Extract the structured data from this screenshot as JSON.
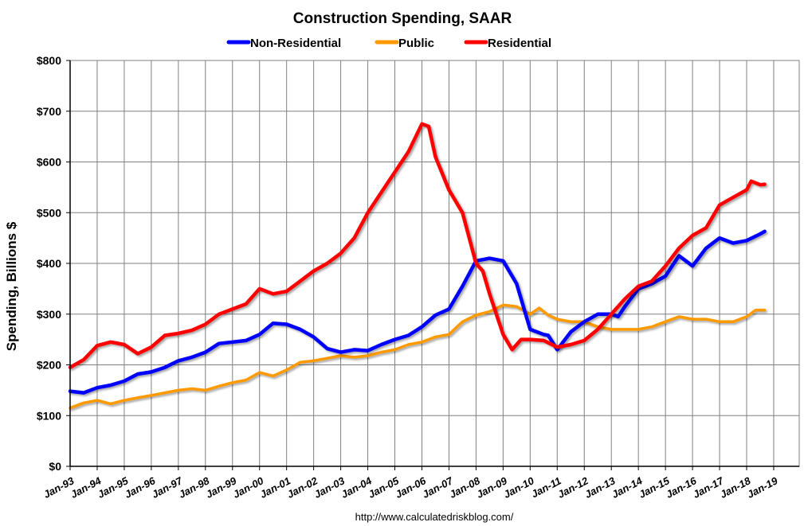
{
  "chart_data": {
    "type": "line",
    "title": "Construction Spending, SAAR",
    "ylabel": "Spending, Billions $",
    "xlabel": "",
    "source": "http://www.calculatedriskblog.com/",
    "ylim": [
      0,
      800
    ],
    "xlim": [
      "1993-01",
      "2019-12"
    ],
    "grid": true,
    "legend_placement": "top",
    "y_ticks": [
      "$0",
      "$100",
      "$200",
      "$300",
      "$400",
      "$500",
      "$600",
      "$700",
      "$800"
    ],
    "x_ticks": [
      "Jan-93",
      "Jan-94",
      "Jan-95",
      "Jan-96",
      "Jan-97",
      "Jan-98",
      "Jan-99",
      "Jan-00",
      "Jan-01",
      "Jan-02",
      "Jan-03",
      "Jan-04",
      "Jan-05",
      "Jan-06",
      "Jan-07",
      "Jan-08",
      "Jan-09",
      "Jan-10",
      "Jan-11",
      "Jan-12",
      "Jan-13",
      "Jan-14",
      "Jan-15",
      "Jan-16",
      "Jan-17",
      "Jan-18",
      "Jan-19"
    ],
    "series": [
      {
        "name": "Non-Residential",
        "color": "#0000FF",
        "points": [
          [
            "1993-01",
            148
          ],
          [
            "1993-07",
            145
          ],
          [
            "1994-01",
            155
          ],
          [
            "1994-07",
            160
          ],
          [
            "1995-01",
            168
          ],
          [
            "1995-07",
            182
          ],
          [
            "1996-01",
            186
          ],
          [
            "1996-07",
            195
          ],
          [
            "1997-01",
            208
          ],
          [
            "1997-07",
            215
          ],
          [
            "1998-01",
            225
          ],
          [
            "1998-07",
            242
          ],
          [
            "1999-01",
            245
          ],
          [
            "1999-07",
            248
          ],
          [
            "2000-01",
            260
          ],
          [
            "2000-07",
            282
          ],
          [
            "2001-01",
            280
          ],
          [
            "2001-07",
            270
          ],
          [
            "2002-01",
            255
          ],
          [
            "2002-07",
            232
          ],
          [
            "2003-01",
            225
          ],
          [
            "2003-07",
            230
          ],
          [
            "2004-01",
            228
          ],
          [
            "2004-07",
            240
          ],
          [
            "2005-01",
            250
          ],
          [
            "2005-07",
            258
          ],
          [
            "2006-01",
            275
          ],
          [
            "2006-07",
            298
          ],
          [
            "2007-01",
            310
          ],
          [
            "2007-07",
            355
          ],
          [
            "2008-01",
            405
          ],
          [
            "2008-07",
            410
          ],
          [
            "2009-01",
            405
          ],
          [
            "2009-07",
            360
          ],
          [
            "2010-01",
            270
          ],
          [
            "2010-07",
            260
          ],
          [
            "2010-09",
            258
          ],
          [
            "2011-01",
            230
          ],
          [
            "2011-07",
            265
          ],
          [
            "2012-01",
            285
          ],
          [
            "2012-07",
            300
          ],
          [
            "2013-01",
            300
          ],
          [
            "2013-04",
            295
          ],
          [
            "2013-07",
            315
          ],
          [
            "2014-01",
            350
          ],
          [
            "2014-07",
            360
          ],
          [
            "2015-01",
            375
          ],
          [
            "2015-07",
            415
          ],
          [
            "2016-01",
            395
          ],
          [
            "2016-07",
            430
          ],
          [
            "2017-01",
            450
          ],
          [
            "2017-07",
            440
          ],
          [
            "2018-01",
            445
          ],
          [
            "2018-07",
            458
          ],
          [
            "2018-09",
            463
          ]
        ]
      },
      {
        "name": "Public",
        "color": "#FF9900",
        "points": [
          [
            "1993-01",
            115
          ],
          [
            "1993-07",
            125
          ],
          [
            "1994-01",
            130
          ],
          [
            "1994-07",
            123
          ],
          [
            "1995-01",
            130
          ],
          [
            "1995-07",
            135
          ],
          [
            "1996-01",
            140
          ],
          [
            "1996-07",
            145
          ],
          [
            "1997-01",
            150
          ],
          [
            "1997-07",
            153
          ],
          [
            "1998-01",
            150
          ],
          [
            "1998-07",
            158
          ],
          [
            "1999-01",
            165
          ],
          [
            "1999-07",
            170
          ],
          [
            "2000-01",
            185
          ],
          [
            "2000-07",
            178
          ],
          [
            "2001-01",
            190
          ],
          [
            "2001-07",
            205
          ],
          [
            "2002-01",
            208
          ],
          [
            "2002-07",
            213
          ],
          [
            "2003-01",
            218
          ],
          [
            "2003-07",
            215
          ],
          [
            "2004-01",
            218
          ],
          [
            "2004-07",
            225
          ],
          [
            "2005-01",
            230
          ],
          [
            "2005-07",
            240
          ],
          [
            "2006-01",
            245
          ],
          [
            "2006-07",
            255
          ],
          [
            "2007-01",
            260
          ],
          [
            "2007-07",
            285
          ],
          [
            "2008-01",
            298
          ],
          [
            "2008-07",
            305
          ],
          [
            "2009-01",
            318
          ],
          [
            "2009-07",
            315
          ],
          [
            "2010-01",
            300
          ],
          [
            "2010-05",
            312
          ],
          [
            "2010-09",
            298
          ],
          [
            "2011-01",
            290
          ],
          [
            "2011-07",
            285
          ],
          [
            "2012-01",
            285
          ],
          [
            "2012-07",
            275
          ],
          [
            "2013-01",
            270
          ],
          [
            "2013-07",
            270
          ],
          [
            "2014-01",
            270
          ],
          [
            "2014-07",
            275
          ],
          [
            "2015-01",
            285
          ],
          [
            "2015-07",
            295
          ],
          [
            "2016-01",
            290
          ],
          [
            "2016-07",
            290
          ],
          [
            "2017-01",
            285
          ],
          [
            "2017-07",
            285
          ],
          [
            "2018-01",
            295
          ],
          [
            "2018-05",
            308
          ],
          [
            "2018-09",
            308
          ]
        ]
      },
      {
        "name": "Residential",
        "color": "#FF0000",
        "points": [
          [
            "1993-01",
            195
          ],
          [
            "1993-07",
            210
          ],
          [
            "1994-01",
            238
          ],
          [
            "1994-07",
            245
          ],
          [
            "1995-01",
            240
          ],
          [
            "1995-07",
            222
          ],
          [
            "1996-01",
            235
          ],
          [
            "1996-07",
            258
          ],
          [
            "1997-01",
            262
          ],
          [
            "1997-07",
            268
          ],
          [
            "1998-01",
            280
          ],
          [
            "1998-07",
            300
          ],
          [
            "1999-01",
            310
          ],
          [
            "1999-07",
            320
          ],
          [
            "2000-01",
            350
          ],
          [
            "2000-07",
            340
          ],
          [
            "2001-01",
            345
          ],
          [
            "2001-07",
            365
          ],
          [
            "2002-01",
            385
          ],
          [
            "2002-07",
            400
          ],
          [
            "2003-01",
            420
          ],
          [
            "2003-07",
            450
          ],
          [
            "2004-01",
            500
          ],
          [
            "2004-07",
            540
          ],
          [
            "2005-01",
            580
          ],
          [
            "2005-07",
            620
          ],
          [
            "2006-01",
            675
          ],
          [
            "2006-04",
            670
          ],
          [
            "2006-07",
            610
          ],
          [
            "2007-01",
            545
          ],
          [
            "2007-07",
            500
          ],
          [
            "2008-01",
            400
          ],
          [
            "2008-04",
            385
          ],
          [
            "2008-07",
            340
          ],
          [
            "2009-01",
            260
          ],
          [
            "2009-05",
            230
          ],
          [
            "2009-09",
            250
          ],
          [
            "2010-01",
            250
          ],
          [
            "2010-07",
            248
          ],
          [
            "2011-01",
            235
          ],
          [
            "2011-07",
            240
          ],
          [
            "2012-01",
            248
          ],
          [
            "2012-07",
            270
          ],
          [
            "2013-01",
            300
          ],
          [
            "2013-07",
            330
          ],
          [
            "2014-01",
            355
          ],
          [
            "2014-07",
            365
          ],
          [
            "2015-01",
            395
          ],
          [
            "2015-07",
            430
          ],
          [
            "2016-01",
            455
          ],
          [
            "2016-07",
            470
          ],
          [
            "2017-01",
            515
          ],
          [
            "2017-07",
            530
          ],
          [
            "2018-01",
            545
          ],
          [
            "2018-03",
            562
          ],
          [
            "2018-07",
            555
          ],
          [
            "2018-09",
            556
          ]
        ]
      }
    ]
  }
}
